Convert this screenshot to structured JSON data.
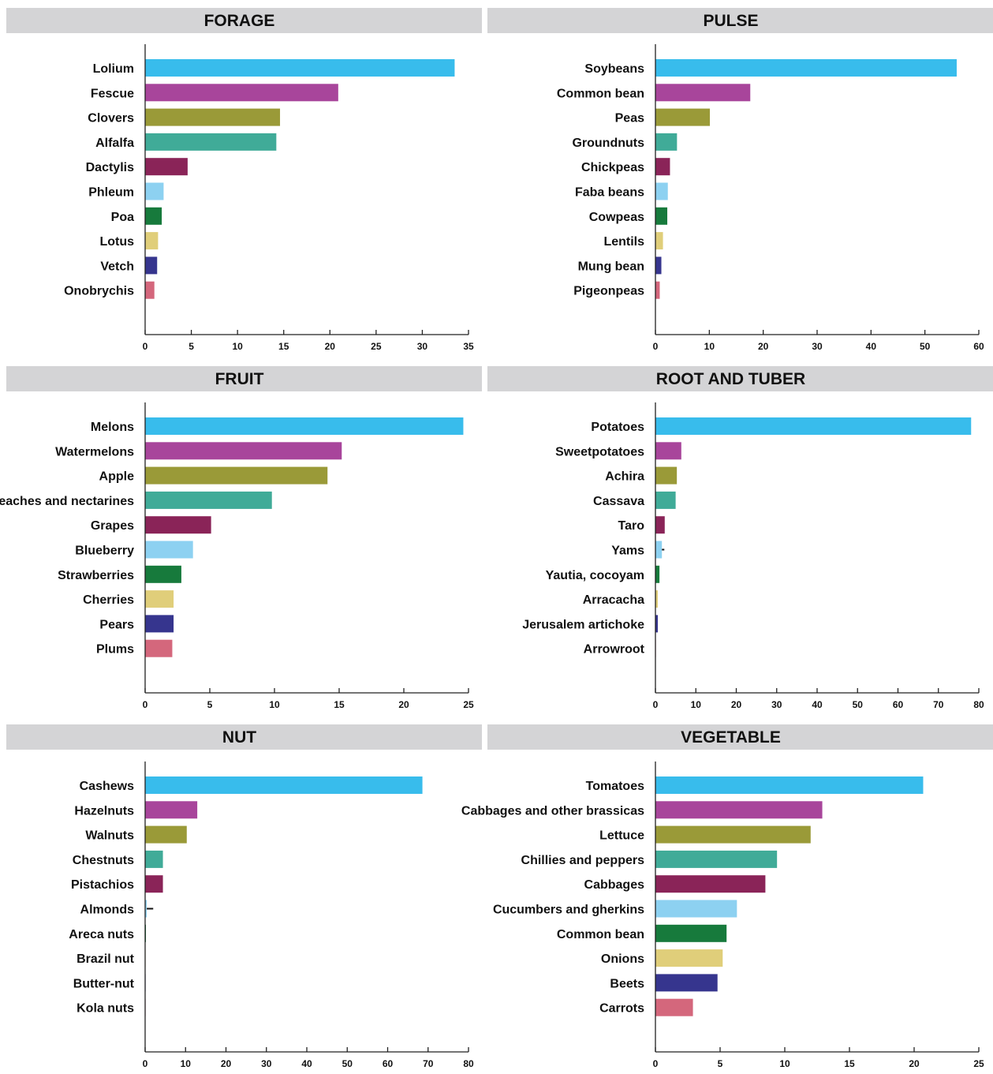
{
  "colors": {
    "header_bg": "#d4d4d6",
    "axis": "#222222",
    "palette": [
      "#38bcec",
      "#a8459b",
      "#9a9a38",
      "#40ab98",
      "#8a2458",
      "#8dd1f1",
      "#177a3c",
      "#e0ce7a",
      "#36358e",
      "#d4677c"
    ]
  },
  "chart_data": [
    {
      "type": "bar",
      "orientation": "horizontal",
      "title": "FORAGE",
      "categories": [
        "Lolium",
        "Fescue",
        "Clovers",
        "Alfalfa",
        "Dactylis",
        "Phleum",
        "Poa",
        "Lotus",
        "Vetch",
        "Onobrychis"
      ],
      "values": [
        33.5,
        20.9,
        14.6,
        14.2,
        4.6,
        2.0,
        1.8,
        1.4,
        1.3,
        1.0
      ],
      "xlim": [
        0,
        35
      ],
      "xticks": [
        "0",
        "5",
        "10",
        "15",
        "20",
        "25",
        "30",
        "35"
      ],
      "xlabel": "",
      "ylabel": ""
    },
    {
      "type": "bar",
      "orientation": "horizontal",
      "title": "PULSE",
      "categories": [
        "Soybeans",
        "Common bean",
        "Peas",
        "Groundnuts",
        "Chickpeas",
        "Faba beans",
        "Cowpeas",
        "Lentils",
        "Mung bean",
        "Pigeonpeas"
      ],
      "values": [
        55.9,
        17.6,
        10.1,
        4.0,
        2.7,
        2.3,
        2.2,
        1.4,
        1.1,
        0.8
      ],
      "xlim": [
        0,
        60
      ],
      "xticks": [
        "0",
        "10",
        "20",
        "30",
        "40",
        "50",
        "60"
      ],
      "xlabel": "",
      "ylabel": ""
    },
    {
      "type": "bar",
      "orientation": "horizontal",
      "title": "FRUIT",
      "categories": [
        "Melons",
        "Watermelons",
        "Apple",
        "Peaches and nectarines",
        "Grapes",
        "Blueberry",
        "Strawberries",
        "Cherries",
        "Pears",
        "Plums"
      ],
      "values": [
        24.6,
        15.2,
        14.1,
        9.8,
        5.1,
        3.7,
        2.8,
        2.2,
        2.2,
        2.1
      ],
      "xlim": [
        0,
        25
      ],
      "xticks": [
        "0",
        "5",
        "10",
        "15",
        "20",
        "25"
      ],
      "xlabel": "",
      "ylabel": ""
    },
    {
      "type": "bar",
      "orientation": "horizontal",
      "title": "ROOT AND TUBER",
      "categories": [
        "Potatoes",
        "Sweetpotatoes",
        "Achira",
        "Cassava",
        "Taro",
        "Yams",
        "Yautia, cocoyam",
        "Arracacha",
        "Jerusalem artichoke",
        "Arrowroot"
      ],
      "values": [
        78.1,
        6.4,
        5.3,
        5.0,
        2.3,
        1.6,
        1.0,
        0.6,
        0.6,
        0.1
      ],
      "errors": [
        null,
        null,
        null,
        null,
        null,
        0.6,
        null,
        null,
        null,
        null
      ],
      "xlim": [
        0,
        80
      ],
      "xticks": [
        "0",
        "10",
        "20",
        "30",
        "40",
        "50",
        "60",
        "70",
        "80"
      ],
      "xlabel": "",
      "ylabel": ""
    },
    {
      "type": "bar",
      "orientation": "horizontal",
      "title": "NUT",
      "categories": [
        "Cashews",
        "Hazelnuts",
        "Walnuts",
        "Chestnuts",
        "Pistachios",
        "Almonds",
        "Areca nuts",
        "Brazil nut",
        "Butter-nut",
        "Kola nuts"
      ],
      "values": [
        68.6,
        12.9,
        10.3,
        4.4,
        4.4,
        0.4,
        0.2,
        0.1,
        0.1,
        0.1
      ],
      "errors": [
        null,
        null,
        null,
        null,
        null,
        1.6,
        null,
        null,
        null,
        null
      ],
      "xlim": [
        0,
        80
      ],
      "xticks": [
        "0",
        "10",
        "20",
        "30",
        "40",
        "50",
        "60",
        "70",
        "80"
      ],
      "xlabel": "",
      "ylabel": ""
    },
    {
      "type": "bar",
      "orientation": "horizontal",
      "title": "VEGETABLE",
      "categories": [
        "Tomatoes",
        "Cabbages and other brassicas",
        "Lettuce",
        "Chillies and peppers",
        "Cabbages",
        "Cucumbers and gherkins",
        "Common bean",
        "Onions",
        "Beets",
        "Carrots"
      ],
      "values": [
        20.7,
        12.9,
        12.0,
        9.4,
        8.5,
        6.3,
        5.5,
        5.2,
        4.8,
        2.9
      ],
      "xlim": [
        0,
        25
      ],
      "xticks": [
        "0",
        "5",
        "10",
        "15",
        "20",
        "25"
      ],
      "xlabel": "",
      "ylabel": ""
    }
  ]
}
